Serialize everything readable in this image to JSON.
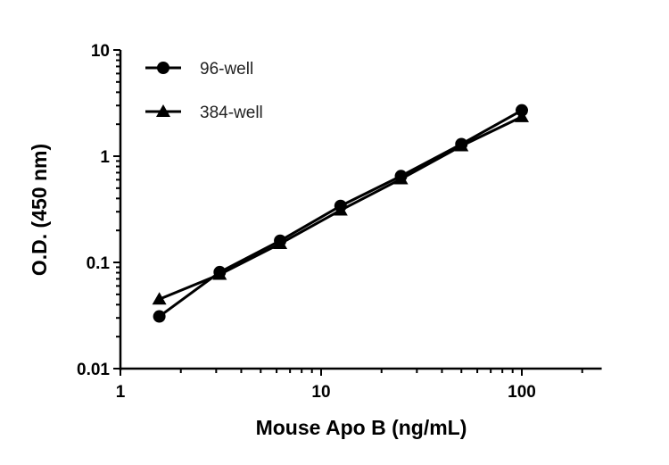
{
  "chart_data": {
    "type": "line",
    "title": "",
    "xlabel": "Mouse Apo B (ng/mL)",
    "ylabel": "O.D. (450 nm)",
    "xscale": "log",
    "yscale": "log",
    "xlim": [
      1,
      250
    ],
    "ylim": [
      0.01,
      10
    ],
    "xticks": [
      1,
      10,
      100
    ],
    "xtick_labels": [
      "1",
      "10",
      "100"
    ],
    "yticks": [
      0.01,
      0.1,
      1,
      10
    ],
    "ytick_labels": [
      "0.01",
      "0.1",
      "1",
      "10"
    ],
    "grid": false,
    "legend_position": "top-left",
    "x": [
      1.5625,
      3.125,
      6.25,
      12.5,
      25,
      50,
      100
    ],
    "series": [
      {
        "name": "96-well",
        "marker": "circle",
        "color": "#000000",
        "values": [
          0.031,
          0.081,
          0.16,
          0.34,
          0.65,
          1.3,
          2.7
        ]
      },
      {
        "name": "384-well",
        "marker": "triangle",
        "color": "#000000",
        "values": [
          0.045,
          0.077,
          0.15,
          0.31,
          0.61,
          1.25,
          2.35
        ]
      }
    ]
  }
}
